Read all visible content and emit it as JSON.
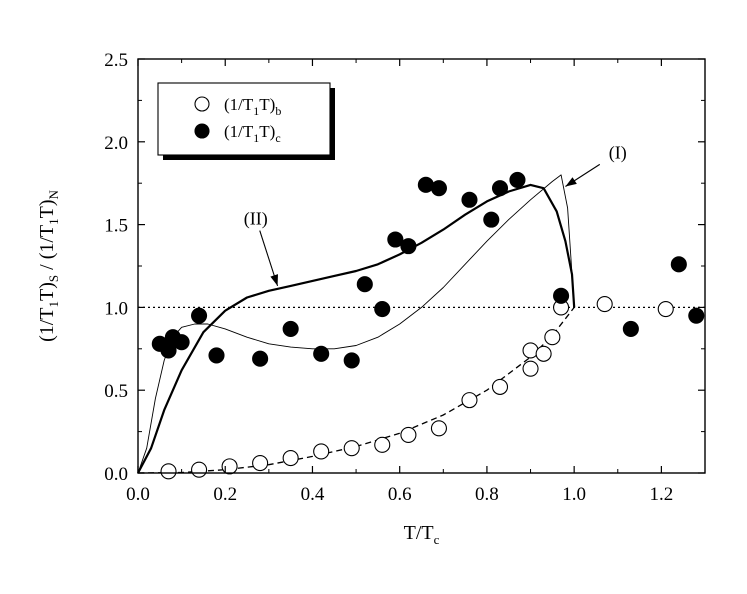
{
  "chart_data": {
    "type": "scatter",
    "x_label": {
      "main": "T/T",
      "sub": "c"
    },
    "y_label": {
      "parts": [
        {
          "t": "(1/T"
        },
        {
          "t": "1",
          "sub": true
        },
        {
          "t": "T)"
        },
        {
          "t": "S",
          "sub": true
        },
        {
          "t": " / (1/T"
        },
        {
          "t": "1",
          "sub": true
        },
        {
          "t": "T)"
        },
        {
          "t": "N",
          "sub": true
        }
      ]
    },
    "xlim": [
      0.0,
      1.3
    ],
    "ylim": [
      0.0,
      2.5
    ],
    "x_ticks": [
      "0.0",
      "0.2",
      "0.4",
      "0.6",
      "0.8",
      "1.0",
      "1.2"
    ],
    "y_ticks": [
      "0.0",
      "0.5",
      "1.0",
      "1.5",
      "2.0",
      "2.5"
    ],
    "reference_line": {
      "y": 1.0,
      "style": "dotted"
    },
    "legend": {
      "position": "top-left",
      "entries": [
        {
          "marker": "open-circle",
          "main": "(1/T",
          "sub1": "1",
          "mid": "T)",
          "sub2": "b"
        },
        {
          "marker": "filled-circle",
          "main": "(1/T",
          "sub1": "1",
          "mid": "T)",
          "sub2": "c"
        }
      ]
    },
    "series": [
      {
        "marker": "open-circle",
        "points": [
          [
            0.07,
            0.01
          ],
          [
            0.14,
            0.02
          ],
          [
            0.21,
            0.04
          ],
          [
            0.28,
            0.06
          ],
          [
            0.35,
            0.09
          ],
          [
            0.42,
            0.13
          ],
          [
            0.49,
            0.15
          ],
          [
            0.56,
            0.17
          ],
          [
            0.62,
            0.23
          ],
          [
            0.69,
            0.27
          ],
          [
            0.76,
            0.44
          ],
          [
            0.83,
            0.52
          ],
          [
            0.9,
            0.63
          ],
          [
            0.9,
            0.74
          ],
          [
            0.93,
            0.72
          ],
          [
            0.95,
            0.82
          ],
          [
            0.97,
            1.0
          ],
          [
            1.07,
            1.02
          ],
          [
            1.21,
            0.99
          ]
        ]
      },
      {
        "marker": "filled-circle",
        "points": [
          [
            0.05,
            0.78
          ],
          [
            0.07,
            0.74
          ],
          [
            0.08,
            0.82
          ],
          [
            0.1,
            0.79
          ],
          [
            0.14,
            0.95
          ],
          [
            0.18,
            0.71
          ],
          [
            0.28,
            0.69
          ],
          [
            0.35,
            0.87
          ],
          [
            0.42,
            0.72
          ],
          [
            0.49,
            0.68
          ],
          [
            0.52,
            1.14
          ],
          [
            0.56,
            0.99
          ],
          [
            0.59,
            1.41
          ],
          [
            0.62,
            1.37
          ],
          [
            0.66,
            1.74
          ],
          [
            0.69,
            1.72
          ],
          [
            0.76,
            1.65
          ],
          [
            0.81,
            1.53
          ],
          [
            0.83,
            1.72
          ],
          [
            0.87,
            1.77
          ],
          [
            0.97,
            1.07
          ],
          [
            1.13,
            0.87
          ],
          [
            1.24,
            1.26
          ],
          [
            1.28,
            0.95
          ]
        ]
      }
    ],
    "curves": [
      {
        "style": "thick",
        "points": [
          [
            0.0,
            0.0
          ],
          [
            0.03,
            0.15
          ],
          [
            0.06,
            0.38
          ],
          [
            0.1,
            0.62
          ],
          [
            0.15,
            0.85
          ],
          [
            0.2,
            0.98
          ],
          [
            0.25,
            1.06
          ],
          [
            0.3,
            1.1
          ],
          [
            0.35,
            1.13
          ],
          [
            0.4,
            1.16
          ],
          [
            0.45,
            1.19
          ],
          [
            0.5,
            1.22
          ],
          [
            0.55,
            1.26
          ],
          [
            0.6,
            1.32
          ],
          [
            0.65,
            1.39
          ],
          [
            0.7,
            1.47
          ],
          [
            0.75,
            1.56
          ],
          [
            0.8,
            1.64
          ],
          [
            0.85,
            1.7
          ],
          [
            0.9,
            1.74
          ],
          [
            0.93,
            1.72
          ],
          [
            0.96,
            1.58
          ],
          [
            0.98,
            1.4
          ],
          [
            0.995,
            1.2
          ],
          [
            1.0,
            1.0
          ]
        ]
      },
      {
        "style": "thin",
        "points": [
          [
            0.0,
            0.0
          ],
          [
            0.02,
            0.15
          ],
          [
            0.04,
            0.45
          ],
          [
            0.06,
            0.68
          ],
          [
            0.08,
            0.82
          ],
          [
            0.1,
            0.88
          ],
          [
            0.13,
            0.9
          ],
          [
            0.16,
            0.9
          ],
          [
            0.2,
            0.87
          ],
          [
            0.25,
            0.82
          ],
          [
            0.3,
            0.78
          ],
          [
            0.35,
            0.76
          ],
          [
            0.4,
            0.75
          ],
          [
            0.45,
            0.75
          ],
          [
            0.5,
            0.77
          ],
          [
            0.55,
            0.82
          ],
          [
            0.6,
            0.9
          ],
          [
            0.65,
            1.0
          ],
          [
            0.7,
            1.12
          ],
          [
            0.75,
            1.26
          ],
          [
            0.8,
            1.4
          ],
          [
            0.85,
            1.53
          ],
          [
            0.9,
            1.65
          ],
          [
            0.95,
            1.76
          ],
          [
            0.97,
            1.8
          ],
          [
            0.985,
            1.6
          ],
          [
            0.995,
            1.2
          ],
          [
            1.0,
            1.0
          ]
        ]
      },
      {
        "style": "dashed",
        "points": [
          [
            0.0,
            0.0
          ],
          [
            0.1,
            0.003
          ],
          [
            0.2,
            0.02
          ],
          [
            0.3,
            0.05
          ],
          [
            0.4,
            0.1
          ],
          [
            0.5,
            0.16
          ],
          [
            0.6,
            0.24
          ],
          [
            0.7,
            0.35
          ],
          [
            0.8,
            0.5
          ],
          [
            0.9,
            0.7
          ],
          [
            0.95,
            0.83
          ],
          [
            1.0,
            1.0
          ]
        ]
      }
    ],
    "annotations": [
      {
        "text": "(I)",
        "x": 1.1,
        "y": 1.9,
        "arrow_to": [
          0.98,
          1.73
        ]
      },
      {
        "text": "(II)",
        "x": 0.27,
        "y": 1.5,
        "arrow_to": [
          0.32,
          1.13
        ]
      }
    ]
  }
}
